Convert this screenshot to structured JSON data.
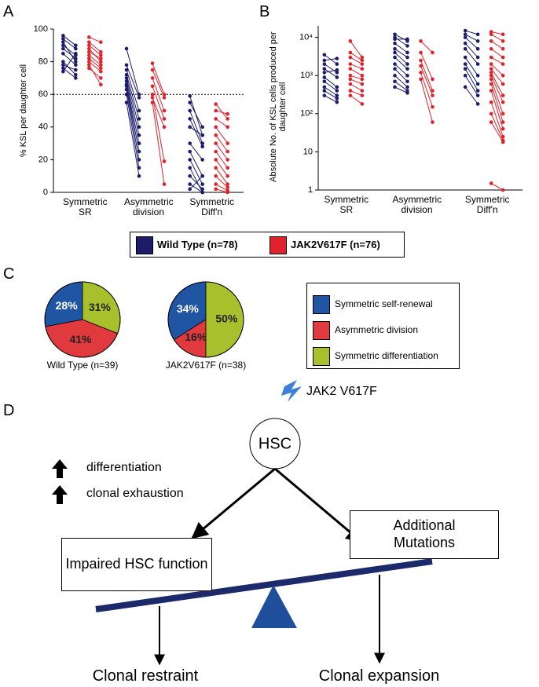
{
  "panels": [
    "A",
    "B",
    "C",
    "D"
  ],
  "chart_data": [
    {
      "type": "paired",
      "ylabel": "% KSL per daughter cell",
      "categories": [
        "Symmetric SR",
        "Asymmetric division",
        "Symmetric Diff'n"
      ],
      "ylim": [
        0,
        100
      ],
      "yticks": [
        0,
        20,
        40,
        60,
        80,
        100
      ],
      "hline": 60,
      "series": [
        {
          "name": "Wild Type (n=78)",
          "color": "#1c1c6b",
          "values": [
            [
              [
                96,
                90
              ],
              [
                94,
                88
              ],
              [
                92,
                80
              ],
              [
                90,
                84
              ],
              [
                88,
                82
              ],
              [
                85,
                78
              ],
              [
                80,
                72
              ],
              [
                78,
                75
              ],
              [
                76,
                70
              ],
              [
                74,
                85
              ]
            ],
            [
              [
                88,
                60
              ],
              [
                78,
                58
              ],
              [
                75,
                50
              ],
              [
                72,
                45
              ],
              [
                70,
                40
              ],
              [
                68,
                35
              ],
              [
                66,
                30
              ],
              [
                65,
                25
              ],
              [
                63,
                20
              ],
              [
                60,
                15
              ],
              [
                55,
                10
              ]
            ],
            [
              [
                59,
                35
              ],
              [
                55,
                40
              ],
              [
                50,
                30
              ],
              [
                45,
                28
              ],
              [
                40,
                35
              ],
              [
                30,
                20
              ],
              [
                25,
                10
              ],
              [
                20,
                5
              ],
              [
                15,
                0
              ],
              [
                10,
                2
              ],
              [
                5,
                0
              ],
              [
                2,
                10
              ]
            ]
          ]
        },
        {
          "name": "JAK2V617F (n=76)",
          "color": "#e0232a",
          "values": [
            [
              [
                95,
                92
              ],
              [
                92,
                86
              ],
              [
                90,
                84
              ],
              [
                88,
                80
              ],
              [
                86,
                82
              ],
              [
                84,
                78
              ],
              [
                82,
                76
              ],
              [
                80,
                74
              ],
              [
                78,
                66
              ],
              [
                76,
                70
              ]
            ],
            [
              [
                79,
                60
              ],
              [
                75,
                58
              ],
              [
                70,
                50
              ],
              [
                65,
                45
              ],
              [
                60,
                19
              ],
              [
                58,
                40
              ],
              [
                55,
                5
              ]
            ],
            [
              [
                54,
                45
              ],
              [
                50,
                48
              ],
              [
                45,
                40
              ],
              [
                40,
                30
              ],
              [
                35,
                25
              ],
              [
                30,
                20
              ],
              [
                25,
                15
              ],
              [
                20,
                10
              ],
              [
                15,
                5
              ],
              [
                10,
                3
              ],
              [
                5,
                1
              ],
              [
                2,
                0
              ]
            ]
          ]
        }
      ]
    },
    {
      "type": "paired",
      "ylabel": "Absolute No. of KSL cells produced per daughter cell",
      "log": true,
      "categories": [
        "Symmetric SR",
        "Asymmetric division",
        "Symmetric Diff'n"
      ],
      "ylim": [
        1,
        20000
      ],
      "yticks": [
        1,
        10,
        {
          "value": 100,
          "label": "10²"
        },
        {
          "value": 1000,
          "label": "10³"
        },
        {
          "value": 10000,
          "label": "10⁴"
        }
      ],
      "series": [
        {
          "color": "#1c1c6b",
          "values": [
            [
              [
                3500,
                2000
              ],
              [
                2500,
                2800
              ],
              [
                2000,
                1200
              ],
              [
                1500,
                900
              ],
              [
                1200,
                1400
              ],
              [
                900,
                500
              ],
              [
                700,
                400
              ],
              [
                500,
                300
              ],
              [
                400,
                250
              ],
              [
                300,
                200
              ]
            ],
            [
              [
                12000,
                8000
              ],
              [
                10000,
                6000
              ],
              [
                9000,
                9000
              ],
              [
                7000,
                4000
              ],
              [
                5000,
                3000
              ],
              [
                4000,
                2000
              ],
              [
                3000,
                1500
              ],
              [
                2000,
                1000
              ],
              [
                1500,
                700
              ],
              [
                1000,
                500
              ],
              [
                700,
                400
              ],
              [
                500,
                350
              ]
            ],
            [
              [
                15000,
                12000
              ],
              [
                12000,
                8000
              ],
              [
                10000,
                5000
              ],
              [
                7000,
                3000
              ],
              [
                5000,
                2000
              ],
              [
                3000,
                1000
              ],
              [
                2000,
                600
              ],
              [
                1500,
                400
              ],
              [
                1000,
                300
              ],
              [
                500,
                180
              ]
            ]
          ]
        },
        {
          "color": "#e0232a",
          "values": [
            [
              [
                8000,
                3000
              ],
              [
                4000,
                2500
              ],
              [
                3000,
                2000
              ],
              [
                2000,
                1500
              ],
              [
                1500,
                1000
              ],
              [
                1000,
                800
              ],
              [
                800,
                600
              ],
              [
                600,
                400
              ],
              [
                400,
                300
              ],
              [
                300,
                180
              ]
            ],
            [
              [
                8000,
                4000
              ],
              [
                4000,
                800
              ],
              [
                2500,
                400
              ],
              [
                1800,
                300
              ],
              [
                1200,
                150
              ],
              [
                800,
                60
              ]
            ],
            [
              [
                14000,
                12000
              ],
              [
                12000,
                8000
              ],
              [
                8000,
                5000
              ],
              [
                5000,
                3000
              ],
              [
                3000,
                2000
              ],
              [
                2000,
                1000
              ],
              [
                1500,
                600
              ],
              [
                1200,
                300
              ],
              [
                1000,
                200
              ],
              [
                800,
                100
              ],
              [
                600,
                60
              ],
              [
                400,
                40
              ],
              [
                200,
                25
              ],
              [
                100,
                20
              ],
              [
                60,
                18
              ],
              [
                1.5,
                1
              ]
            ]
          ]
        }
      ]
    },
    {
      "type": "pie",
      "categories": [
        "Symmetric self-renewal",
        "Asymmetric division",
        "Symmetric differentiation"
      ],
      "colors": [
        "#1f55a3",
        "#e03a3e",
        "#a8c02c"
      ],
      "series": [
        {
          "name": "Wild Type (n=39)",
          "values": [
            28,
            41,
            31
          ],
          "value_labels": [
            "28%",
            "41%",
            "31%"
          ]
        },
        {
          "name": "JAK2V617F (n=38)",
          "values": [
            34,
            16,
            50
          ],
          "value_labels": [
            "34%",
            "16%",
            "50%"
          ]
        }
      ]
    }
  ],
  "diagram": {
    "mutation": "JAK2 V617F",
    "node": "HSC",
    "effects": [
      "differentiation",
      "clonal exhaustion"
    ],
    "left_box": "Impaired HSC function",
    "right_box": "Additional Mutations",
    "outcomes": [
      "Clonal restraint",
      "Clonal expansion"
    ]
  }
}
